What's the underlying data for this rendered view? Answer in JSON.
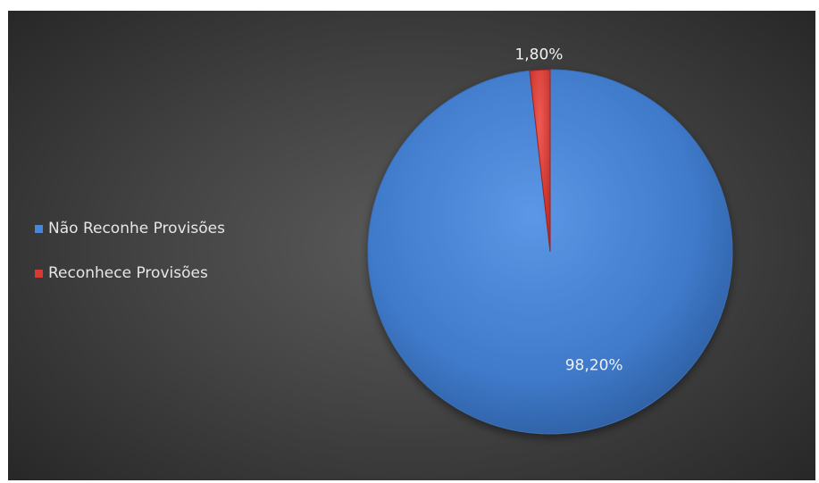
{
  "chart_data": {
    "type": "pie",
    "categories": [
      "Não Reconhe Provisões",
      "Reconhece Provisões"
    ],
    "values": [
      98.2,
      1.8
    ],
    "data_labels": [
      "98,20%",
      "1,80%"
    ],
    "colors": [
      "#4a86d8",
      "#d63a34"
    ],
    "legend_position": "left",
    "start_angle_deg": 0,
    "title": ""
  }
}
